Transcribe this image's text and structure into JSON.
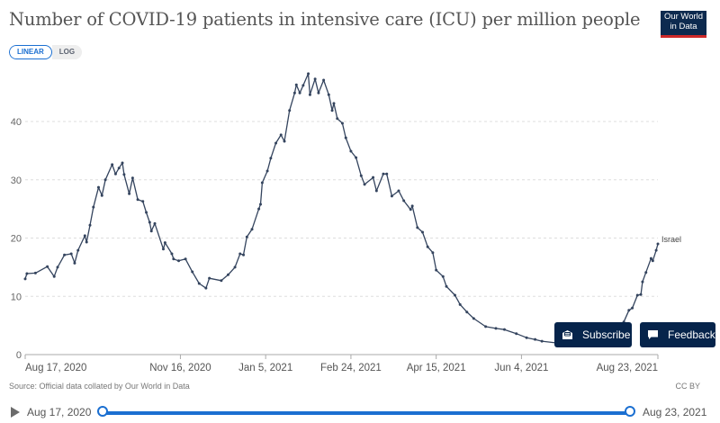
{
  "header": {
    "title": "Number of COVID-19 patients in intensive care (ICU) per million people",
    "logo_line1": "Our World",
    "logo_line2": "in Data"
  },
  "scale_toggle": {
    "options": [
      "LINEAR",
      "LOG"
    ],
    "selected": "LINEAR"
  },
  "buttons": {
    "subscribe": "Subscribe",
    "feedback": "Feedback"
  },
  "footer": {
    "source": "Source: Official data collated by Our World in Data",
    "license": "CC BY"
  },
  "timeline": {
    "start": "Aug 17, 2020",
    "end": "Aug 23, 2021",
    "play_icon": "play-icon"
  },
  "colors": {
    "line": "#34445e",
    "accent": "#1b6fd1",
    "button_bg": "#06244b",
    "logo_bg": "#0d2a4f",
    "logo_bar": "#ce2a2a"
  },
  "chart_data": {
    "type": "line",
    "title": "Number of COVID-19 patients in intensive care (ICU) per million people",
    "xlabel": "",
    "ylabel": "",
    "xlim": [
      "2020-08-17",
      "2021-08-23"
    ],
    "ylim": [
      0,
      48
    ],
    "yticks": [
      0,
      10,
      20,
      30,
      40
    ],
    "xticks": [
      {
        "date": "2020-08-17",
        "label": "Aug 17, 2020"
      },
      {
        "date": "2020-11-16",
        "label": "Nov 16, 2020"
      },
      {
        "date": "2021-01-05",
        "label": "Jan 5, 2021"
      },
      {
        "date": "2021-02-24",
        "label": "Feb 24, 2021"
      },
      {
        "date": "2021-04-15",
        "label": "Apr 15, 2021"
      },
      {
        "date": "2021-06-04",
        "label": "Jun 4, 2021"
      },
      {
        "date": "2021-08-23",
        "label": "Aug 23, 2021"
      }
    ],
    "grid": "horizontal-dashed",
    "series": [
      {
        "name": "Israel",
        "points": [
          [
            "2020-08-17",
            13.0
          ],
          [
            "2020-08-18",
            13.9
          ],
          [
            "2020-08-23",
            14.0
          ],
          [
            "2020-08-30",
            15.1
          ],
          [
            "2020-09-03",
            13.4
          ],
          [
            "2020-09-05",
            15.0
          ],
          [
            "2020-09-09",
            17.1
          ],
          [
            "2020-09-13",
            17.3
          ],
          [
            "2020-09-15",
            15.7
          ],
          [
            "2020-09-17",
            17.9
          ],
          [
            "2020-09-21",
            20.4
          ],
          [
            "2020-09-22",
            19.3
          ],
          [
            "2020-09-24",
            22.2
          ],
          [
            "2020-09-26",
            25.3
          ],
          [
            "2020-09-29",
            28.7
          ],
          [
            "2020-10-01",
            27.3
          ],
          [
            "2020-10-03",
            30.0
          ],
          [
            "2020-10-07",
            32.6
          ],
          [
            "2020-10-09",
            31.0
          ],
          [
            "2020-10-11",
            32.0
          ],
          [
            "2020-10-13",
            32.9
          ],
          [
            "2020-10-14",
            30.9
          ],
          [
            "2020-10-17",
            27.6
          ],
          [
            "2020-10-19",
            30.3
          ],
          [
            "2020-10-22",
            26.6
          ],
          [
            "2020-10-25",
            26.3
          ],
          [
            "2020-10-27",
            24.4
          ],
          [
            "2020-10-29",
            22.7
          ],
          [
            "2020-10-30",
            21.2
          ],
          [
            "2020-11-01",
            22.5
          ],
          [
            "2020-11-06",
            18.1
          ],
          [
            "2020-11-07",
            19.2
          ],
          [
            "2020-11-11",
            17.3
          ],
          [
            "2020-11-12",
            16.4
          ],
          [
            "2020-11-15",
            16.1
          ],
          [
            "2020-11-19",
            16.4
          ],
          [
            "2020-11-23",
            14.2
          ],
          [
            "2020-11-27",
            12.2
          ],
          [
            "2020-12-01",
            11.4
          ],
          [
            "2020-12-03",
            13.1
          ],
          [
            "2020-12-10",
            12.7
          ],
          [
            "2020-12-14",
            13.7
          ],
          [
            "2020-12-18",
            15.0
          ],
          [
            "2020-12-21",
            17.3
          ],
          [
            "2020-12-23",
            17.1
          ],
          [
            "2020-12-25",
            20.2
          ],
          [
            "2020-12-28",
            21.5
          ],
          [
            "2021-01-01",
            25.0
          ],
          [
            "2021-01-02",
            25.8
          ],
          [
            "2021-01-03",
            29.5
          ],
          [
            "2021-01-06",
            31.5
          ],
          [
            "2021-01-08",
            33.7
          ],
          [
            "2021-01-11",
            36.3
          ],
          [
            "2021-01-14",
            37.7
          ],
          [
            "2021-01-16",
            36.6
          ],
          [
            "2021-01-19",
            41.9
          ],
          [
            "2021-01-22",
            44.9
          ],
          [
            "2021-01-23",
            46.3
          ],
          [
            "2021-01-25",
            44.9
          ],
          [
            "2021-01-27",
            46.2
          ],
          [
            "2021-01-30",
            48.2
          ],
          [
            "2021-01-31",
            44.6
          ],
          [
            "2021-02-03",
            47.3
          ],
          [
            "2021-02-05",
            44.9
          ],
          [
            "2021-02-08",
            47.1
          ],
          [
            "2021-02-11",
            44.6
          ],
          [
            "2021-02-13",
            41.9
          ],
          [
            "2021-02-14",
            43.1
          ],
          [
            "2021-02-16",
            40.5
          ],
          [
            "2021-02-19",
            39.7
          ],
          [
            "2021-02-21",
            37.2
          ],
          [
            "2021-02-24",
            34.9
          ],
          [
            "2021-02-27",
            33.8
          ],
          [
            "2021-03-02",
            30.7
          ],
          [
            "2021-03-04",
            29.2
          ],
          [
            "2021-03-09",
            30.4
          ],
          [
            "2021-03-11",
            28.1
          ],
          [
            "2021-03-15",
            31.0
          ],
          [
            "2021-03-17",
            31.0
          ],
          [
            "2021-03-20",
            27.2
          ],
          [
            "2021-03-24",
            28.1
          ],
          [
            "2021-03-27",
            26.4
          ],
          [
            "2021-03-31",
            24.9
          ],
          [
            "2021-04-01",
            25.5
          ],
          [
            "2021-04-04",
            21.8
          ],
          [
            "2021-04-07",
            21.0
          ],
          [
            "2021-04-10",
            18.5
          ],
          [
            "2021-04-13",
            17.5
          ],
          [
            "2021-04-15",
            14.5
          ],
          [
            "2021-04-19",
            13.4
          ],
          [
            "2021-04-21",
            11.7
          ],
          [
            "2021-04-26",
            10.2
          ],
          [
            "2021-04-29",
            8.6
          ],
          [
            "2021-05-03",
            7.3
          ],
          [
            "2021-05-07",
            6.2
          ],
          [
            "2021-05-14",
            4.8
          ],
          [
            "2021-05-20",
            4.5
          ],
          [
            "2021-05-25",
            4.3
          ],
          [
            "2021-06-01",
            3.6
          ],
          [
            "2021-06-07",
            2.9
          ],
          [
            "2021-06-12",
            2.6
          ],
          [
            "2021-06-16",
            2.3
          ],
          [
            "2021-06-25",
            2.0
          ],
          [
            "2021-07-07",
            1.8
          ],
          [
            "2021-07-20",
            1.8
          ],
          [
            "2021-07-31",
            3.0
          ],
          [
            "2021-08-03",
            5.6
          ],
          [
            "2021-08-06",
            7.6
          ],
          [
            "2021-08-08",
            8.0
          ],
          [
            "2021-08-11",
            10.2
          ],
          [
            "2021-08-13",
            10.3
          ],
          [
            "2021-08-14",
            12.5
          ],
          [
            "2021-08-16",
            14.1
          ],
          [
            "2021-08-19",
            16.5
          ],
          [
            "2021-08-20",
            16.1
          ],
          [
            "2021-08-22",
            17.9
          ],
          [
            "2021-08-23",
            19.0
          ]
        ]
      }
    ],
    "legend": "inline-end-label"
  }
}
